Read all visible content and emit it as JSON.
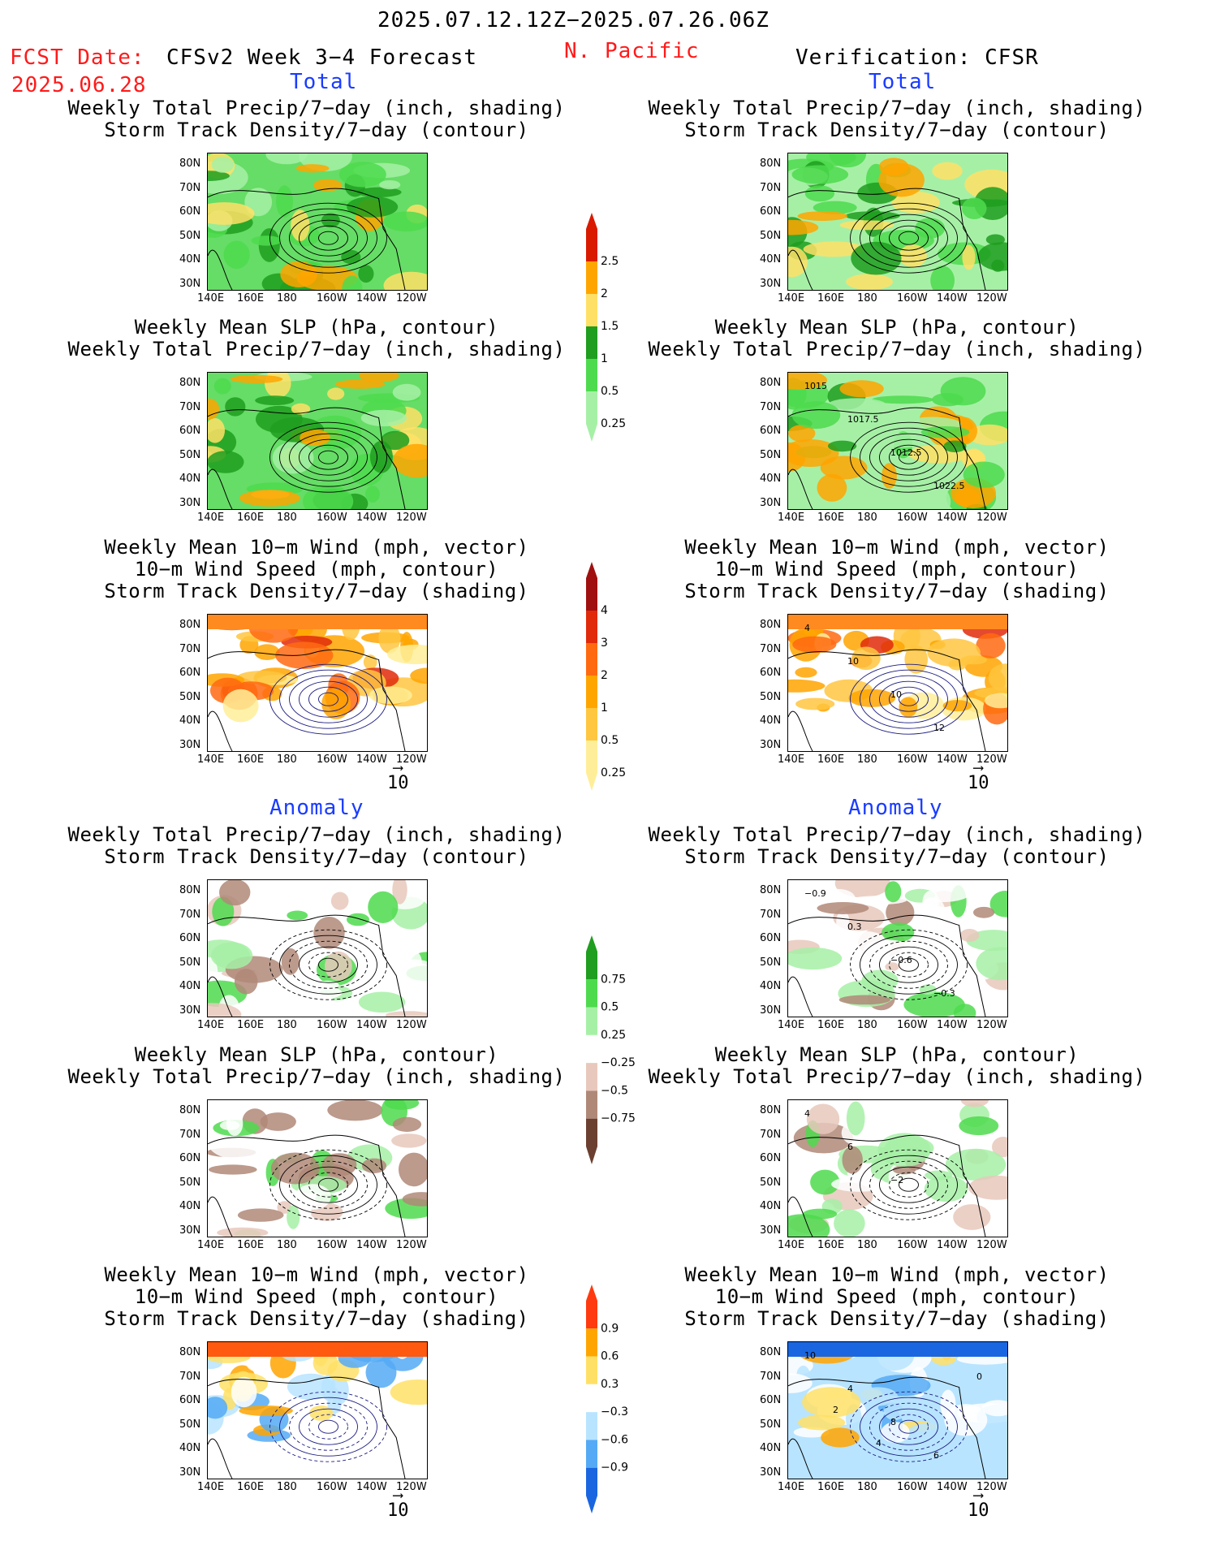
{
  "header": {
    "period": "2025.07.12.12Z−2025.07.26.06Z",
    "fcst_label": "FCST Date:",
    "fcst_date": "2025.06.28",
    "model": "CFSv2 Week 3−4 Forecast",
    "region": "N. Pacific",
    "verification": "Verification: CFSR"
  },
  "sections": {
    "total": "Total",
    "anomaly": "Anomaly"
  },
  "titles": {
    "precip_storm_1": "Weekly Total Precip/7−day (inch, shading)",
    "precip_storm_2": "Storm Track Density/7−day (contour)",
    "slp_1": "Weekly Mean SLP (hPa, contour)",
    "slp_2": "Weekly Total Precip/7−day (inch, shading)",
    "wind_1": "Weekly Mean 10−m Wind (mph, vector)",
    "wind_2": "10−m Wind Speed (mph, contour)",
    "wind_3": "Storm Track Density/7−day (shading)"
  },
  "axes": {
    "lat_ticks": [
      "80N",
      "70N",
      "60N",
      "50N",
      "40N",
      "30N"
    ],
    "lon_ticks": [
      "140E",
      "160E",
      "180",
      "160W",
      "140W",
      "120W"
    ]
  },
  "vector_ref": "10",
  "colorbars": {
    "precip_total": {
      "labels": [
        "2.5",
        "2",
        "1.5",
        "1",
        "0.5",
        "0.25"
      ],
      "colors": [
        "#d91a00",
        "#ffa500",
        "#ffe066",
        "#1f9e1f",
        "#4ddb4d",
        "#a6f0a6"
      ]
    },
    "storm_total": {
      "labels": [
        "4",
        "3",
        "2",
        "1",
        "0.5",
        "0.25"
      ],
      "colors": [
        "#a01010",
        "#e02a0a",
        "#ff6a10",
        "#ffa500",
        "#ffc640",
        "#ffee99"
      ]
    },
    "precip_anom": {
      "labels": [
        "0.75",
        "0.5",
        "0.25",
        "−0.25",
        "−0.5",
        "−0.75"
      ],
      "colors": [
        "#1f9e1f",
        "#4ddb4d",
        "#a6f0a6",
        "#ffffff",
        "#e8c8bc",
        "#b08878",
        "#6b4030"
      ]
    },
    "storm_anom": {
      "labels": [
        "0.9",
        "0.6",
        "0.3",
        "−0.3",
        "−0.6",
        "−0.9"
      ],
      "colors": [
        "#ff3a10",
        "#ffa500",
        "#ffe066",
        "#ffffff",
        "#b8e4ff",
        "#55aaf5",
        "#1a66e0"
      ]
    }
  },
  "contour_labels": {
    "f2": [
      "1015",
      "1017.5",
      "1012.5",
      "1022.5"
    ],
    "f3": [
      "4",
      "10",
      "10",
      "12"
    ],
    "f4": [
      "−0.9",
      "0.3",
      "−0.6",
      "−0.3"
    ],
    "f5": [
      "4",
      "6",
      "−2"
    ],
    "f6": [
      "10",
      "4",
      "8",
      "6",
      "0",
      "2",
      "4"
    ]
  }
}
